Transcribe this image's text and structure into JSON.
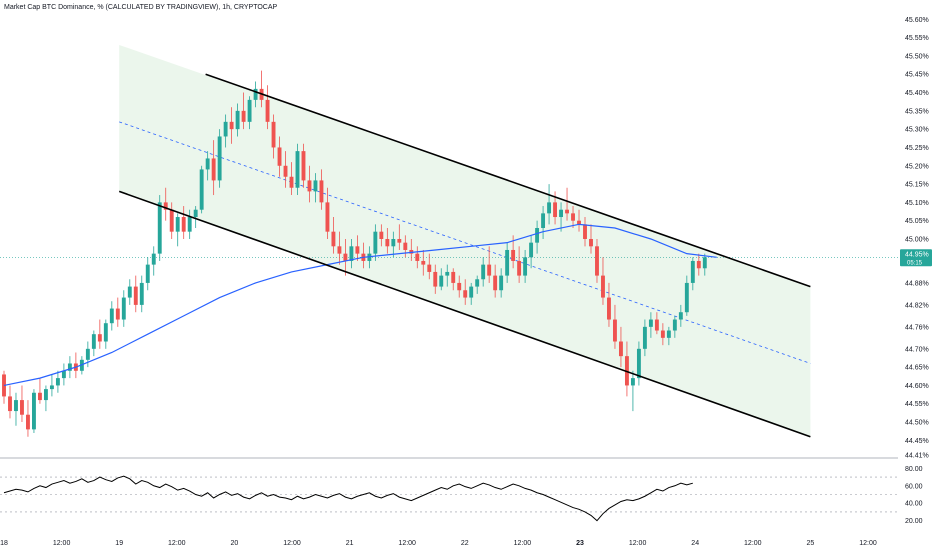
{
  "header": {
    "title": "Market Cap BTC Dominance, % (CALCULATED BY TRADINGVIEW), 1h, CRYPTOCAP"
  },
  "colors": {
    "up": "#26a69a",
    "down": "#ef5350",
    "ma": "#2962ff",
    "channel_fill": "#e8f5e9",
    "channel_line": "#000000",
    "midline": "#2962ff",
    "rsi_line": "#000000",
    "price_label_bg": "#26a69a"
  },
  "price_axis": {
    "labels": [
      "45.60%",
      "45.55%",
      "45.50%",
      "45.45%",
      "45.40%",
      "45.35%",
      "45.30%",
      "45.25%",
      "45.20%",
      "45.15%",
      "45.10%",
      "45.05%",
      "45.00%",
      "44.88%",
      "44.82%",
      "44.76%",
      "44.70%",
      "44.65%",
      "44.60%",
      "44.55%",
      "44.50%",
      "44.45%",
      "44.41%"
    ],
    "current_price_label": "44.95%",
    "current_countdown": "05:15"
  },
  "rsi_axis": {
    "labels": [
      "80.00",
      "60.00",
      "40.00",
      "20.00"
    ]
  },
  "time_axis": {
    "labels": [
      "18",
      "12:00",
      "19",
      "12:00",
      "20",
      "12:00",
      "21",
      "12:00",
      "22",
      "12:00",
      "23",
      "12:00",
      "24",
      "12:00",
      "25",
      "12:00"
    ]
  },
  "chart_data": {
    "type": "candlestick",
    "title": "Market Cap BTC Dominance, % (CALCULATED BY TRADINGVIEW), 1h, CRYPTOCAP",
    "ylim": [
      44.41,
      45.62
    ],
    "x_unit": "hours",
    "x_start_label": "18",
    "channel": {
      "upper": [
        [
          19.75,
          45.45
        ],
        [
          25.0,
          44.87
        ]
      ],
      "lower": [
        [
          19.0,
          45.13
        ],
        [
          25.0,
          44.46
        ]
      ],
      "middle": [
        [
          19.0,
          45.32
        ],
        [
          25.0,
          44.66
        ]
      ],
      "shade_top": [
        [
          19.0,
          45.53
        ],
        [
          25.0,
          44.87
        ]
      ]
    },
    "candles": [
      [
        44.63,
        44.64,
        44.55,
        44.57
      ],
      [
        44.57,
        44.6,
        44.51,
        44.53
      ],
      [
        44.53,
        44.58,
        44.49,
        44.56
      ],
      [
        44.56,
        44.6,
        44.5,
        44.52
      ],
      [
        44.52,
        44.56,
        44.46,
        44.48
      ],
      [
        44.48,
        44.59,
        44.47,
        44.58
      ],
      [
        44.58,
        44.62,
        44.55,
        44.56
      ],
      [
        44.56,
        44.6,
        44.53,
        44.59
      ],
      [
        44.59,
        44.63,
        44.57,
        44.6
      ],
      [
        44.6,
        44.64,
        44.58,
        44.62
      ],
      [
        44.62,
        44.66,
        44.6,
        44.64
      ],
      [
        44.64,
        44.68,
        44.62,
        44.66
      ],
      [
        44.66,
        44.69,
        44.62,
        44.64
      ],
      [
        44.64,
        44.68,
        44.63,
        44.67
      ],
      [
        44.67,
        44.72,
        44.65,
        44.7
      ],
      [
        44.7,
        44.75,
        44.68,
        44.74
      ],
      [
        44.74,
        44.78,
        44.7,
        44.72
      ],
      [
        44.72,
        44.78,
        44.7,
        44.77
      ],
      [
        44.77,
        44.83,
        44.75,
        44.81
      ],
      [
        44.81,
        44.84,
        44.76,
        44.78
      ],
      [
        44.78,
        44.86,
        44.76,
        44.84
      ],
      [
        44.84,
        44.89,
        44.82,
        44.87
      ],
      [
        44.87,
        44.9,
        44.8,
        44.82
      ],
      [
        44.82,
        44.9,
        44.8,
        44.88
      ],
      [
        44.88,
        44.95,
        44.86,
        44.93
      ],
      [
        44.93,
        44.98,
        44.9,
        44.96
      ],
      [
        44.96,
        45.12,
        44.94,
        45.1
      ],
      [
        45.1,
        45.14,
        45.05,
        45.08
      ],
      [
        45.08,
        45.1,
        45.0,
        45.02
      ],
      [
        45.02,
        45.07,
        44.98,
        45.06
      ],
      [
        45.06,
        45.09,
        45.0,
        45.02
      ],
      [
        45.02,
        45.08,
        45.0,
        45.06
      ],
      [
        45.06,
        45.09,
        45.03,
        45.08
      ],
      [
        45.08,
        45.2,
        45.07,
        45.19
      ],
      [
        45.19,
        45.24,
        45.16,
        45.22
      ],
      [
        45.22,
        45.27,
        45.12,
        45.16
      ],
      [
        45.16,
        45.3,
        45.14,
        45.28
      ],
      [
        45.28,
        45.34,
        45.25,
        45.32
      ],
      [
        45.32,
        45.36,
        45.26,
        45.3
      ],
      [
        45.3,
        45.37,
        45.28,
        45.35
      ],
      [
        45.35,
        45.4,
        45.3,
        45.32
      ],
      [
        45.32,
        45.39,
        45.3,
        45.38
      ],
      [
        45.38,
        45.43,
        45.36,
        45.41
      ],
      [
        45.41,
        45.46,
        45.36,
        45.38
      ],
      [
        45.38,
        45.42,
        45.3,
        45.32
      ],
      [
        45.32,
        45.34,
        45.22,
        45.25
      ],
      [
        45.25,
        45.28,
        45.17,
        45.2
      ],
      [
        45.2,
        45.24,
        45.14,
        45.17
      ],
      [
        45.17,
        45.21,
        45.12,
        45.14
      ],
      [
        45.14,
        45.26,
        45.12,
        45.24
      ],
      [
        45.24,
        45.26,
        45.14,
        45.16
      ],
      [
        45.16,
        45.2,
        45.1,
        45.13
      ],
      [
        45.13,
        45.18,
        45.1,
        45.16
      ],
      [
        45.16,
        45.19,
        45.08,
        45.1
      ],
      [
        45.1,
        45.14,
        45.0,
        45.02
      ],
      [
        45.02,
        45.06,
        44.96,
        44.98
      ],
      [
        44.98,
        45.02,
        44.93,
        44.96
      ],
      [
        44.96,
        45.0,
        44.9,
        44.94
      ],
      [
        44.94,
        45.0,
        44.92,
        44.98
      ],
      [
        44.98,
        45.01,
        44.94,
        44.96
      ],
      [
        44.96,
        44.99,
        44.92,
        44.94
      ],
      [
        44.94,
        44.98,
        44.92,
        44.96
      ],
      [
        44.96,
        45.04,
        44.94,
        45.02
      ],
      [
        45.02,
        45.04,
        44.98,
        45.0
      ],
      [
        45.0,
        45.03,
        44.96,
        44.98
      ],
      [
        44.98,
        45.02,
        44.95,
        45.0
      ],
      [
        45.0,
        45.04,
        44.97,
        44.99
      ],
      [
        44.99,
        45.01,
        44.95,
        44.97
      ],
      [
        44.97,
        45.0,
        44.94,
        44.96
      ],
      [
        44.96,
        44.98,
        44.92,
        44.94
      ],
      [
        44.94,
        44.97,
        44.9,
        44.93
      ],
      [
        44.93,
        44.96,
        44.89,
        44.91
      ],
      [
        44.91,
        44.93,
        44.85,
        44.87
      ],
      [
        44.87,
        44.92,
        44.86,
        44.9
      ],
      [
        44.9,
        44.93,
        44.87,
        44.91
      ],
      [
        44.91,
        44.92,
        44.86,
        44.88
      ],
      [
        44.88,
        44.9,
        44.84,
        44.86
      ],
      [
        44.86,
        44.89,
        44.82,
        44.84
      ],
      [
        44.84,
        44.88,
        44.82,
        44.87
      ],
      [
        44.87,
        44.9,
        44.85,
        44.89
      ],
      [
        44.89,
        44.95,
        44.87,
        44.93
      ],
      [
        44.93,
        44.98,
        44.88,
        44.9
      ],
      [
        44.9,
        44.93,
        44.84,
        44.86
      ],
      [
        44.86,
        44.92,
        44.84,
        44.9
      ],
      [
        44.9,
        44.99,
        44.88,
        44.97
      ],
      [
        44.97,
        45.01,
        44.92,
        44.94
      ],
      [
        44.94,
        44.98,
        44.88,
        44.9
      ],
      [
        44.9,
        44.97,
        44.88,
        44.95
      ],
      [
        44.95,
        45.01,
        44.92,
        44.99
      ],
      [
        44.99,
        45.05,
        44.96,
        45.03
      ],
      [
        45.03,
        45.09,
        45.0,
        45.07
      ],
      [
        45.07,
        45.15,
        45.04,
        45.1
      ],
      [
        45.1,
        45.13,
        45.04,
        45.06
      ],
      [
        45.06,
        45.1,
        45.02,
        45.08
      ],
      [
        45.08,
        45.14,
        45.05,
        45.07
      ],
      [
        45.07,
        45.09,
        45.03,
        45.05
      ],
      [
        45.05,
        45.08,
        45.02,
        45.04
      ],
      [
        45.04,
        45.06,
        44.98,
        45.0
      ],
      [
        45.0,
        45.04,
        44.96,
        44.98
      ],
      [
        44.98,
        45.0,
        44.88,
        44.9
      ],
      [
        44.9,
        44.95,
        44.82,
        44.84
      ],
      [
        44.84,
        44.88,
        44.76,
        44.78
      ],
      [
        44.78,
        44.82,
        44.7,
        44.72
      ],
      [
        44.72,
        44.76,
        44.65,
        44.68
      ],
      [
        44.68,
        44.72,
        44.57,
        44.6
      ],
      [
        44.6,
        44.64,
        44.53,
        44.62
      ],
      [
        44.62,
        44.72,
        44.6,
        44.7
      ],
      [
        44.7,
        44.78,
        44.68,
        44.76
      ],
      [
        44.76,
        44.8,
        44.73,
        44.78
      ],
      [
        44.78,
        44.8,
        44.74,
        44.75
      ],
      [
        44.75,
        44.77,
        44.71,
        44.73
      ],
      [
        44.73,
        44.76,
        44.71,
        44.75
      ],
      [
        44.75,
        44.79,
        44.73,
        44.78
      ],
      [
        44.78,
        44.82,
        44.76,
        44.8
      ],
      [
        44.8,
        44.9,
        44.79,
        44.88
      ],
      [
        44.88,
        44.95,
        44.86,
        44.94
      ],
      [
        44.94,
        44.96,
        44.9,
        44.92
      ],
      [
        44.92,
        44.96,
        44.9,
        44.95
      ]
    ],
    "ma_points": [
      [
        0,
        44.6
      ],
      [
        6,
        44.62
      ],
      [
        12,
        44.65
      ],
      [
        18,
        44.69
      ],
      [
        24,
        44.74
      ],
      [
        30,
        44.79
      ],
      [
        36,
        44.84
      ],
      [
        42,
        44.88
      ],
      [
        48,
        44.91
      ],
      [
        54,
        44.93
      ],
      [
        60,
        44.95
      ],
      [
        66,
        44.96
      ],
      [
        72,
        44.97
      ],
      [
        78,
        44.98
      ],
      [
        84,
        44.99
      ],
      [
        90,
        45.02
      ],
      [
        96,
        45.04
      ],
      [
        102,
        45.03
      ],
      [
        108,
        45.0
      ],
      [
        114,
        44.96
      ],
      [
        119,
        44.95
      ]
    ],
    "rsi": {
      "ylim": [
        15,
        85
      ],
      "levels": [
        70,
        50,
        30
      ],
      "values": [
        52,
        54,
        56,
        55,
        53,
        57,
        60,
        58,
        62,
        64,
        66,
        63,
        65,
        68,
        64,
        66,
        70,
        67,
        65,
        69,
        71,
        68,
        62,
        66,
        64,
        60,
        58,
        62,
        59,
        55,
        57,
        54,
        50,
        48,
        52,
        46,
        50,
        53,
        49,
        51,
        47,
        45,
        49,
        52,
        48,
        50,
        47,
        46,
        44,
        48,
        45,
        47,
        50,
        48,
        46,
        49,
        51,
        47,
        45,
        48,
        50,
        52,
        48,
        46,
        49,
        51,
        47,
        45,
        43,
        46,
        49,
        52,
        55,
        58,
        56,
        60,
        62,
        59,
        57,
        60,
        63,
        61,
        58,
        56,
        59,
        62,
        60,
        57,
        55,
        52,
        50,
        47,
        44,
        41,
        38,
        35,
        33,
        30,
        26,
        20,
        28,
        34,
        38,
        42,
        44,
        43,
        45,
        48,
        52,
        56,
        54,
        58,
        60,
        63,
        61,
        63
      ]
    }
  }
}
